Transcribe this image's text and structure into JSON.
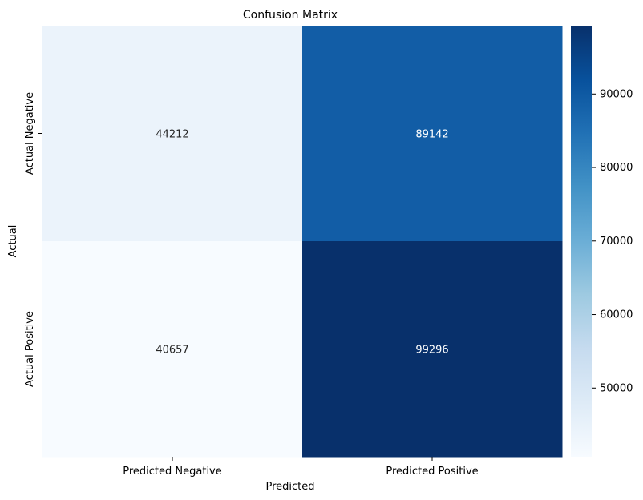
{
  "chart_data": {
    "type": "heatmap",
    "title": "Confusion Matrix",
    "xlabel": "Predicted",
    "ylabel": "Actual",
    "x_categories": [
      "Predicted Negative",
      "Predicted Positive"
    ],
    "y_categories": [
      "Actual Negative",
      "Actual Positive"
    ],
    "values": [
      [
        44212,
        89142
      ],
      [
        40657,
        99296
      ]
    ],
    "colorscale": "Blues",
    "colorbar": {
      "range": [
        40657,
        99296
      ],
      "ticks": [
        50000,
        60000,
        70000,
        80000,
        90000
      ]
    }
  }
}
